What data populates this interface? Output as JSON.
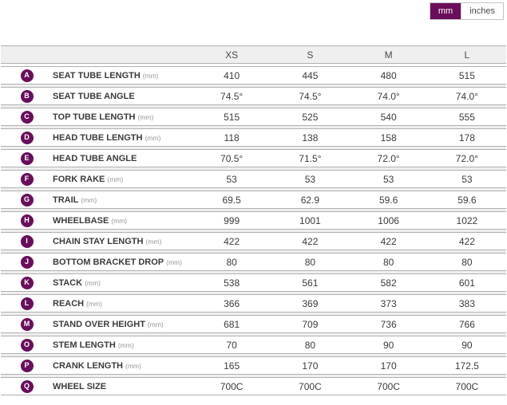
{
  "unit_toggle": {
    "options": [
      {
        "label": "mm",
        "selected": true
      },
      {
        "label": "inches",
        "selected": false
      }
    ]
  },
  "colors": {
    "accent": "#6a0e5b",
    "row_border": "#b0b0b0",
    "header_bg": "#efefef",
    "text": "#3b3b3b",
    "unit_text": "#979797"
  },
  "table": {
    "size_headers": [
      "XS",
      "S",
      "M",
      "L"
    ],
    "rows": [
      {
        "badge": "A",
        "label": "SEAT TUBE LENGTH",
        "unit": "(mm)",
        "values": [
          "410",
          "445",
          "480",
          "515"
        ]
      },
      {
        "badge": "B",
        "label": "SEAT TUBE ANGLE",
        "unit": "",
        "values": [
          "74.5°",
          "74.5°",
          "74.0°",
          "74.0°"
        ]
      },
      {
        "badge": "C",
        "label": "TOP TUBE LENGTH",
        "unit": "(mm)",
        "values": [
          "515",
          "525",
          "540",
          "555"
        ]
      },
      {
        "badge": "D",
        "label": "HEAD TUBE LENGTH",
        "unit": "(mm)",
        "values": [
          "118",
          "138",
          "158",
          "178"
        ]
      },
      {
        "badge": "E",
        "label": "HEAD TUBE ANGLE",
        "unit": "",
        "values": [
          "70.5°",
          "71.5°",
          "72.0°",
          "72.0°"
        ]
      },
      {
        "badge": "F",
        "label": "FORK RAKE",
        "unit": "(mm)",
        "values": [
          "53",
          "53",
          "53",
          "53"
        ]
      },
      {
        "badge": "G",
        "label": "TRAIL",
        "unit": "(mm)",
        "values": [
          "69.5",
          "62.9",
          "59.6",
          "59.6"
        ]
      },
      {
        "badge": "H",
        "label": "WHEELBASE",
        "unit": "(mm)",
        "values": [
          "999",
          "1001",
          "1006",
          "1022"
        ]
      },
      {
        "badge": "I",
        "label": "CHAIN STAY LENGTH",
        "unit": "(mm)",
        "values": [
          "422",
          "422",
          "422",
          "422"
        ]
      },
      {
        "badge": "J",
        "label": "BOTTOM BRACKET DROP",
        "unit": "(mm)",
        "values": [
          "80",
          "80",
          "80",
          "80"
        ]
      },
      {
        "badge": "K",
        "label": "STACK",
        "unit": "(mm)",
        "values": [
          "538",
          "561",
          "582",
          "601"
        ]
      },
      {
        "badge": "L",
        "label": "REACH",
        "unit": "(mm)",
        "values": [
          "366",
          "369",
          "373",
          "383"
        ]
      },
      {
        "badge": "M",
        "label": "STAND OVER HEIGHT",
        "unit": "(mm)",
        "values": [
          "681",
          "709",
          "736",
          "766"
        ]
      },
      {
        "badge": "O",
        "label": "STEM LENGTH",
        "unit": "(mm)",
        "values": [
          "70",
          "80",
          "90",
          "90"
        ]
      },
      {
        "badge": "P",
        "label": "CRANK LENGTH",
        "unit": "(mm)",
        "values": [
          "165",
          "170",
          "170",
          "172.5"
        ]
      },
      {
        "badge": "Q",
        "label": "WHEEL SIZE",
        "unit": "",
        "values": [
          "700C",
          "700C",
          "700C",
          "700C"
        ]
      }
    ]
  }
}
